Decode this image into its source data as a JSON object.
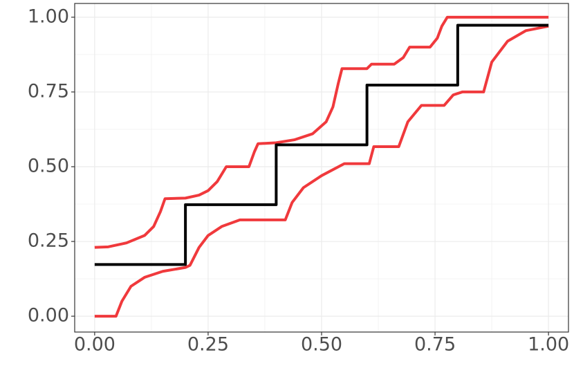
{
  "chart_data": {
    "type": "line",
    "xlim": [
      -0.044,
      1.044
    ],
    "ylim": [
      -0.053,
      1.046
    ],
    "xticks": [
      {
        "value": 0,
        "label": "0.00"
      },
      {
        "value": 0.25,
        "label": "0.25"
      },
      {
        "value": 0.5,
        "label": "0.50"
      },
      {
        "value": 0.75,
        "label": "0.75"
      },
      {
        "value": 1,
        "label": "1.00"
      }
    ],
    "yticks": [
      {
        "value": 0,
        "label": "0.00"
      },
      {
        "value": 0.25,
        "label": "0.25"
      },
      {
        "value": 0.5,
        "label": "0.50"
      },
      {
        "value": 0.75,
        "label": "0.75"
      },
      {
        "value": 1,
        "label": "1.00"
      }
    ],
    "minor_xticks": [
      0.125,
      0.375,
      0.625,
      0.875
    ],
    "minor_yticks": [
      0.125,
      0.375,
      0.625,
      0.875
    ],
    "grid": true,
    "series": [
      {
        "color": "#f0393c",
        "x": [
          0,
          0.03,
          0.07,
          0.11,
          0.13,
          0.145,
          0.155,
          0.2,
          0.23,
          0.25,
          0.27,
          0.29,
          0.34,
          0.352,
          0.36,
          0.4,
          0.44,
          0.48,
          0.51,
          0.525,
          0.537,
          0.545,
          0.6,
          0.61,
          0.66,
          0.68,
          0.694,
          0.739,
          0.755,
          0.765,
          0.777,
          1.0
        ],
        "values": [
          0.23,
          0.232,
          0.245,
          0.27,
          0.3,
          0.35,
          0.393,
          0.395,
          0.405,
          0.42,
          0.45,
          0.5,
          0.5,
          0.55,
          0.577,
          0.58,
          0.59,
          0.61,
          0.65,
          0.7,
          0.78,
          0.828,
          0.828,
          0.843,
          0.843,
          0.865,
          0.9,
          0.9,
          0.93,
          0.97,
          1.0,
          1.0
        ]
      },
      {
        "color": "#f0393c",
        "x": [
          0,
          0.047,
          0.06,
          0.08,
          0.11,
          0.15,
          0.2,
          0.21,
          0.23,
          0.25,
          0.28,
          0.32,
          0.42,
          0.435,
          0.46,
          0.5,
          0.55,
          0.605,
          0.615,
          0.67,
          0.69,
          0.72,
          0.77,
          0.79,
          0.81,
          0.857,
          0.875,
          0.91,
          0.95,
          1.0
        ],
        "values": [
          0,
          0,
          0.05,
          0.1,
          0.13,
          0.15,
          0.163,
          0.17,
          0.23,
          0.27,
          0.3,
          0.322,
          0.322,
          0.38,
          0.43,
          0.47,
          0.51,
          0.51,
          0.567,
          0.567,
          0.65,
          0.705,
          0.705,
          0.74,
          0.75,
          0.75,
          0.85,
          0.92,
          0.955,
          0.97
        ]
      },
      {
        "color": "#000000",
        "x": [
          0,
          0.2,
          0.2,
          0.4,
          0.4,
          0.6,
          0.6,
          0.8,
          0.8,
          1.0
        ],
        "values": [
          0.173,
          0.173,
          0.373,
          0.373,
          0.573,
          0.573,
          0.773,
          0.773,
          0.973,
          0.973
        ]
      }
    ]
  }
}
